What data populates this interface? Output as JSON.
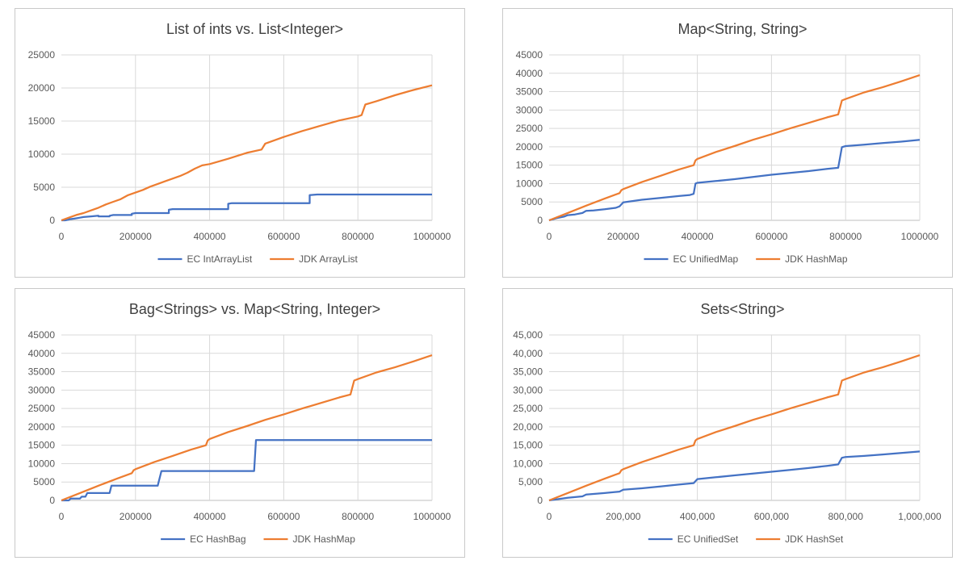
{
  "colors": {
    "ec": "#4472c4",
    "jdk": "#ed7d31",
    "grid": "#d9d9d9",
    "axis": "#bfbfbf"
  },
  "chart_data": [
    {
      "type": "line",
      "title": "List of ints vs. List<Integer>",
      "xlim": [
        0,
        1000000
      ],
      "ylim": [
        0,
        25000
      ],
      "xticks": [
        "0",
        "200000",
        "400000",
        "600000",
        "800000",
        "1000000"
      ],
      "yticks": [
        "0",
        "5000",
        "10000",
        "15000",
        "20000",
        "25000"
      ],
      "legend_position": "bottom",
      "grid": true,
      "series": [
        {
          "name": "EC IntArrayList",
          "color": "#4472c4",
          "x": [
            0,
            10000,
            20000,
            20000,
            35000,
            35000,
            50000,
            50000,
            60000,
            60000,
            80000,
            80000,
            100000,
            100000,
            130000,
            130000,
            140000,
            140000,
            190000,
            190000,
            200000,
            200000,
            290000,
            290000,
            300000,
            300000,
            450000,
            450000,
            460000,
            460000,
            670000,
            670000,
            690000,
            690000,
            1000000
          ],
          "y": [
            0,
            0,
            100,
            150,
            250,
            250,
            400,
            400,
            500,
            500,
            600,
            600,
            700,
            600,
            600,
            700,
            800,
            800,
            800,
            1000,
            1100,
            1100,
            1100,
            1600,
            1700,
            1700,
            1700,
            2500,
            2600,
            2600,
            2600,
            3800,
            3900,
            3900,
            3900
          ]
        },
        {
          "name": "JDK ArrayList",
          "color": "#ed7d31",
          "x": [
            0,
            20000,
            40000,
            60000,
            80000,
            100000,
            120000,
            140000,
            160000,
            180000,
            200000,
            220000,
            240000,
            260000,
            280000,
            300000,
            320000,
            340000,
            360000,
            380000,
            400000,
            450000,
            500000,
            540000,
            550000,
            600000,
            650000,
            700000,
            750000,
            800000,
            810000,
            820000,
            850000,
            900000,
            950000,
            1000000
          ],
          "y": [
            0,
            400,
            800,
            1100,
            1500,
            1900,
            2400,
            2800,
            3200,
            3800,
            4200,
            4600,
            5100,
            5500,
            5900,
            6300,
            6700,
            7200,
            7800,
            8300,
            8500,
            9300,
            10200,
            10700,
            11600,
            12600,
            13500,
            14300,
            15100,
            15700,
            15900,
            17500,
            18000,
            18900,
            19700,
            20400
          ]
        }
      ]
    },
    {
      "type": "line",
      "title": "Map<String, String>",
      "xlim": [
        0,
        1000000
      ],
      "ylim": [
        0,
        45000
      ],
      "xticks": [
        "0",
        "200000",
        "400000",
        "600000",
        "800000",
        "1000000"
      ],
      "yticks": [
        "0",
        "5000",
        "10000",
        "15000",
        "20000",
        "25000",
        "30000",
        "35000",
        "40000",
        "45000"
      ],
      "legend_position": "bottom",
      "grid": true,
      "series": [
        {
          "name": "EC UnifiedMap",
          "color": "#4472c4",
          "x": [
            0,
            20000,
            40000,
            50000,
            70000,
            90000,
            100000,
            120000,
            150000,
            180000,
            190000,
            200000,
            250000,
            300000,
            350000,
            380000,
            390000,
            395000,
            400000,
            450000,
            500000,
            550000,
            600000,
            650000,
            700000,
            750000,
            780000,
            790000,
            800000,
            850000,
            900000,
            950000,
            1000000
          ],
          "y": [
            0,
            600,
            1000,
            1400,
            1600,
            2000,
            2600,
            2700,
            3000,
            3400,
            3800,
            4900,
            5600,
            6100,
            6600,
            6900,
            7200,
            10000,
            10200,
            10700,
            11200,
            11800,
            12400,
            12900,
            13400,
            14000,
            14300,
            19900,
            20200,
            20600,
            21000,
            21400,
            21900
          ]
        },
        {
          "name": "JDK HashMap",
          "color": "#ed7d31",
          "x": [
            0,
            50000,
            100000,
            150000,
            190000,
            195000,
            200000,
            250000,
            300000,
            350000,
            390000,
            395000,
            400000,
            450000,
            500000,
            550000,
            600000,
            650000,
            700000,
            750000,
            780000,
            790000,
            800000,
            850000,
            900000,
            950000,
            1000000
          ],
          "y": [
            0,
            2000,
            4000,
            5900,
            7400,
            8200,
            8500,
            10400,
            12100,
            13800,
            15000,
            16300,
            16700,
            18600,
            20200,
            21900,
            23400,
            25000,
            26500,
            28000,
            28800,
            32600,
            33000,
            34800,
            36200,
            37800,
            39500
          ]
        }
      ]
    },
    {
      "type": "line",
      "title": "Bag<Strings> vs. Map<String, Integer>",
      "xlim": [
        0,
        1000000
      ],
      "ylim": [
        0,
        45000
      ],
      "xticks": [
        "0",
        "200000",
        "400000",
        "600000",
        "800000",
        "1000000"
      ],
      "yticks": [
        "0",
        "5000",
        "10000",
        "15000",
        "20000",
        "25000",
        "30000",
        "35000",
        "40000",
        "45000"
      ],
      "legend_position": "bottom",
      "grid": true,
      "series": [
        {
          "name": "EC HashBag",
          "color": "#4472c4",
          "x": [
            0,
            20000,
            25000,
            50000,
            55000,
            65000,
            70000,
            130000,
            135000,
            260000,
            270000,
            520000,
            525000,
            1000000
          ],
          "y": [
            0,
            0,
            500,
            500,
            1000,
            1000,
            2000,
            2000,
            4000,
            4000,
            8000,
            8000,
            16400,
            16400
          ]
        },
        {
          "name": "JDK HashMap",
          "color": "#ed7d31",
          "x": [
            0,
            50000,
            100000,
            150000,
            190000,
            195000,
            200000,
            250000,
            300000,
            350000,
            390000,
            395000,
            400000,
            450000,
            500000,
            550000,
            600000,
            650000,
            700000,
            750000,
            780000,
            790000,
            800000,
            850000,
            900000,
            950000,
            1000000
          ],
          "y": [
            0,
            2000,
            4000,
            5900,
            7400,
            8200,
            8500,
            10400,
            12100,
            13800,
            15000,
            16300,
            16700,
            18600,
            20200,
            21900,
            23400,
            25000,
            26500,
            28000,
            28800,
            32600,
            33000,
            34800,
            36200,
            37800,
            39500
          ]
        }
      ]
    },
    {
      "type": "line",
      "title": "Sets<String>",
      "xlim": [
        0,
        1000000
      ],
      "ylim": [
        0,
        45000
      ],
      "xticks": [
        "0",
        "200,000",
        "400,000",
        "600,000",
        "800,000",
        "1,000,000"
      ],
      "yticks": [
        "0",
        "5,000",
        "10,000",
        "15,000",
        "20,000",
        "25,000",
        "30,000",
        "35,000",
        "40,000",
        "45,000"
      ],
      "legend_position": "bottom",
      "grid": true,
      "series": [
        {
          "name": "EC UnifiedSet",
          "color": "#4472c4",
          "x": [
            0,
            50000,
            90000,
            100000,
            150000,
            190000,
            200000,
            250000,
            300000,
            350000,
            390000,
            400000,
            450000,
            500000,
            550000,
            600000,
            650000,
            700000,
            750000,
            780000,
            790000,
            800000,
            850000,
            900000,
            950000,
            1000000
          ],
          "y": [
            0,
            700,
            1100,
            1600,
            2000,
            2400,
            2900,
            3300,
            3800,
            4300,
            4700,
            5800,
            6300,
            6800,
            7300,
            7800,
            8300,
            8800,
            9400,
            9800,
            11600,
            11800,
            12100,
            12500,
            12900,
            13300
          ]
        },
        {
          "name": "JDK HashSet",
          "color": "#ed7d31",
          "x": [
            0,
            50000,
            100000,
            150000,
            190000,
            195000,
            200000,
            250000,
            300000,
            350000,
            390000,
            395000,
            400000,
            450000,
            500000,
            550000,
            600000,
            650000,
            700000,
            750000,
            780000,
            790000,
            800000,
            850000,
            900000,
            950000,
            1000000
          ],
          "y": [
            0,
            2000,
            4000,
            5900,
            7400,
            8200,
            8500,
            10400,
            12100,
            13800,
            15000,
            16300,
            16700,
            18600,
            20200,
            21900,
            23400,
            25000,
            26500,
            28000,
            28800,
            32600,
            33000,
            34800,
            36200,
            37800,
            39500
          ]
        }
      ]
    }
  ]
}
